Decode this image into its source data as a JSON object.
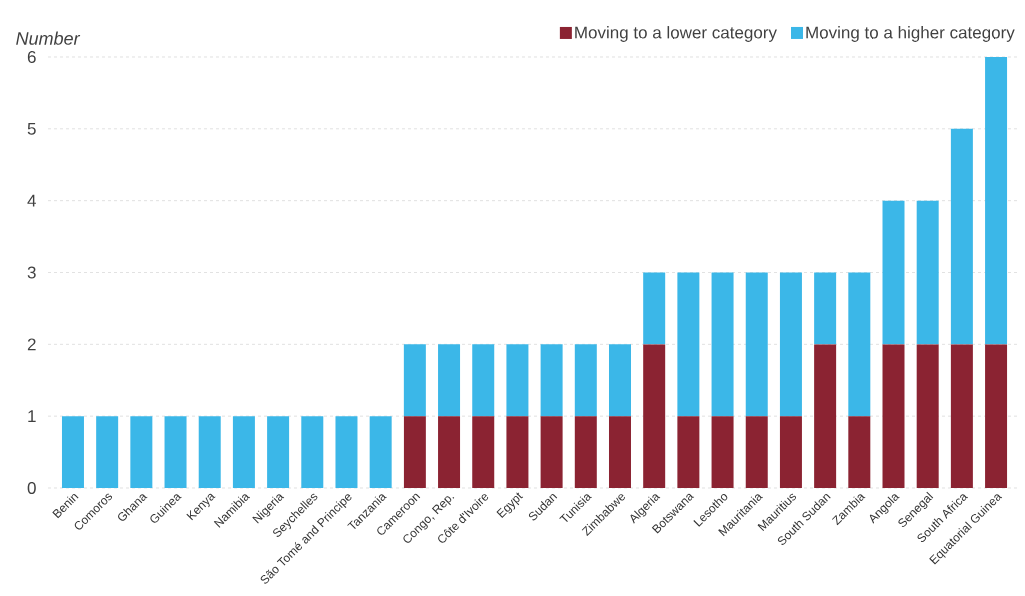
{
  "chart_data": {
    "type": "bar",
    "stacked": true,
    "ylabel": "Number",
    "categories": [
      "Benin",
      "Comoros",
      "Ghana",
      "Guinea",
      "Kenya",
      "Namibia",
      "Nigeria",
      "Seychelles",
      "São Tomé and Principe",
      "Tanzania",
      "Cameroon",
      "Congo, Rep.",
      "Côte d'Ivoire",
      "Egypt",
      "Sudan",
      "Tunisia",
      "Zimbabwe",
      "Algeria",
      "Botswana",
      "Lesotho",
      "Mauritania",
      "Mauritius",
      "South Sudan",
      "Zambia",
      "Angola",
      "Senegal",
      "South Africa",
      "Equatorial Guinea"
    ],
    "series": [
      {
        "name": "Moving to a lower category",
        "color": "#8b2332",
        "values": [
          0,
          0,
          0,
          0,
          0,
          0,
          0,
          0,
          0,
          0,
          1,
          1,
          1,
          1,
          1,
          1,
          1,
          2,
          1,
          1,
          1,
          1,
          2,
          1,
          2,
          2,
          2,
          2
        ]
      },
      {
        "name": "Moving to a higher category",
        "color": "#3bb7e8",
        "values": [
          1,
          1,
          1,
          1,
          1,
          1,
          1,
          1,
          1,
          1,
          1,
          1,
          1,
          1,
          1,
          1,
          1,
          1,
          2,
          2,
          2,
          2,
          1,
          2,
          2,
          2,
          3,
          4
        ]
      }
    ],
    "ylim": [
      0,
      6
    ],
    "yticks": [
      0,
      1,
      2,
      3,
      4,
      5,
      6
    ],
    "grid": "y",
    "legend": "top right"
  }
}
